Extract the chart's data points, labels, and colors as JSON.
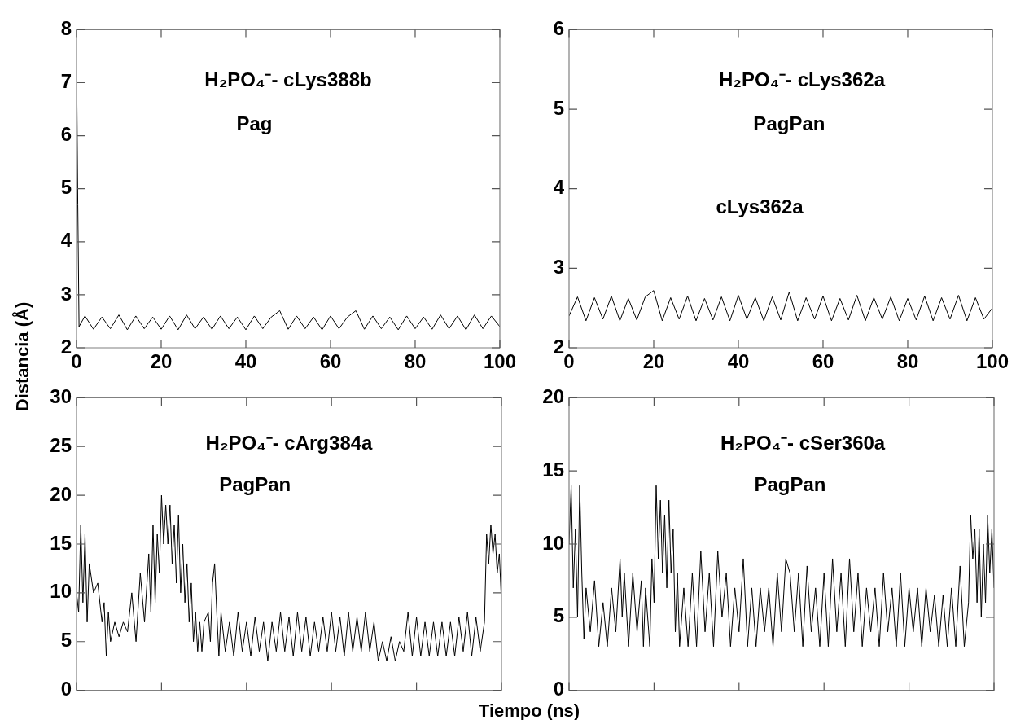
{
  "chart_data": [
    {
      "type": "line",
      "ylabel": "Distancia (Å)",
      "annotations": [
        "H₂PO₄⁻- cLys388b",
        "Pag"
      ],
      "xlim": [
        0,
        100
      ],
      "xticks": [
        0,
        20,
        40,
        60,
        80,
        100
      ],
      "ylim": [
        2,
        8
      ],
      "yticks": [
        2,
        3,
        4,
        5,
        6,
        7,
        8
      ],
      "grid": false,
      "marker": "none",
      "line_style": "solid",
      "series": [
        {
          "color": "#000000",
          "x": [
            0,
            0.3,
            0.6,
            2,
            4,
            6,
            8,
            10,
            12,
            14,
            16,
            18,
            20,
            22,
            24,
            26,
            28,
            30,
            32,
            34,
            36,
            38,
            40,
            42,
            44,
            46,
            48,
            50,
            52,
            54,
            56,
            58,
            60,
            62,
            64,
            66,
            68,
            70,
            72,
            74,
            76,
            78,
            80,
            82,
            84,
            86,
            88,
            90,
            92,
            94,
            96,
            98,
            100
          ],
          "values": [
            7.5,
            4.7,
            2.4,
            2.6,
            2.35,
            2.58,
            2.36,
            2.62,
            2.34,
            2.6,
            2.36,
            2.58,
            2.35,
            2.6,
            2.34,
            2.62,
            2.36,
            2.58,
            2.35,
            2.6,
            2.36,
            2.58,
            2.34,
            2.6,
            2.36,
            2.58,
            2.7,
            2.35,
            2.6,
            2.36,
            2.58,
            2.34,
            2.6,
            2.36,
            2.58,
            2.7,
            2.35,
            2.6,
            2.36,
            2.58,
            2.34,
            2.6,
            2.36,
            2.58,
            2.35,
            2.62,
            2.36,
            2.6,
            2.34,
            2.62,
            2.36,
            2.6,
            2.4
          ]
        }
      ]
    },
    {
      "type": "line",
      "annotations": [
        "H₂PO₄⁻- cLys362a",
        "PagPan",
        "cLys362a"
      ],
      "xlim": [
        0,
        100
      ],
      "xticks": [
        0,
        20,
        40,
        60,
        80,
        100
      ],
      "ylim": [
        2,
        6
      ],
      "yticks": [
        2,
        3,
        4,
        5,
        6
      ],
      "grid": false,
      "marker": "none",
      "line_style": "solid",
      "series": [
        {
          "color": "#000000",
          "x": [
            0,
            2,
            4,
            6,
            8,
            10,
            12,
            14,
            16,
            18,
            20,
            22,
            24,
            26,
            28,
            30,
            32,
            34,
            36,
            38,
            40,
            42,
            44,
            46,
            48,
            50,
            52,
            54,
            56,
            58,
            60,
            62,
            64,
            66,
            68,
            70,
            72,
            74,
            76,
            78,
            80,
            82,
            84,
            86,
            88,
            90,
            92,
            94,
            96,
            98,
            100
          ],
          "values": [
            2.4,
            2.64,
            2.34,
            2.63,
            2.36,
            2.65,
            2.34,
            2.62,
            2.35,
            2.64,
            2.72,
            2.34,
            2.63,
            2.36,
            2.65,
            2.34,
            2.62,
            2.35,
            2.64,
            2.34,
            2.66,
            2.36,
            2.63,
            2.34,
            2.64,
            2.35,
            2.7,
            2.34,
            2.63,
            2.36,
            2.65,
            2.34,
            2.62,
            2.35,
            2.66,
            2.34,
            2.63,
            2.36,
            2.64,
            2.34,
            2.62,
            2.35,
            2.65,
            2.34,
            2.63,
            2.36,
            2.66,
            2.34,
            2.63,
            2.36,
            2.5
          ]
        }
      ]
    },
    {
      "type": "line",
      "xlabel": "Tiempo (ns)",
      "annotations": [
        "H₂PO₄⁻- cArg384a",
        "PagPan"
      ],
      "xlim": [
        0,
        100
      ],
      "xticks": [
        0,
        20,
        40,
        60,
        80,
        100
      ],
      "ylim": [
        0,
        30
      ],
      "yticks": [
        0,
        5,
        10,
        15,
        20,
        25,
        30
      ],
      "tick_labels": "y",
      "grid": false,
      "marker": "none",
      "line_style": "solid",
      "series": [
        {
          "color": "#000000",
          "x": [
            0,
            0.5,
            1,
            1.5,
            2,
            2.5,
            3,
            4,
            5,
            6,
            6.5,
            7,
            7.5,
            8,
            9,
            10,
            11,
            12,
            13,
            14,
            15,
            16,
            17,
            17.5,
            18,
            18.5,
            19,
            19.5,
            20,
            20.5,
            21,
            21.5,
            22,
            22.5,
            23,
            23.5,
            24,
            24.5,
            25,
            25.5,
            26,
            26.5,
            27,
            27.5,
            28,
            28.5,
            29,
            29.5,
            30,
            31,
            31.5,
            32,
            32.5,
            33,
            33.5,
            34,
            35,
            36,
            37,
            38,
            39,
            40,
            41,
            42,
            43,
            44,
            45,
            46,
            47,
            48,
            49,
            50,
            51,
            52,
            53,
            54,
            55,
            56,
            57,
            58,
            59,
            60,
            61,
            62,
            63,
            64,
            65,
            66,
            67,
            68,
            69,
            70,
            71,
            72,
            73,
            74,
            75,
            76,
            77,
            78,
            79,
            80,
            81,
            82,
            83,
            84,
            85,
            86,
            87,
            88,
            89,
            90,
            91,
            92,
            93,
            94,
            95,
            96,
            96.5,
            97,
            97.5,
            98,
            98.5,
            99,
            99.5,
            100
          ],
          "values": [
            10,
            8,
            17,
            9,
            16,
            7,
            13,
            10,
            11,
            7,
            9,
            3.5,
            8,
            5,
            7,
            5.5,
            7,
            6,
            10,
            5,
            12,
            7,
            14,
            8,
            17,
            9,
            16,
            12,
            20,
            15,
            19,
            15,
            19,
            13,
            17,
            11,
            18,
            10,
            15,
            9,
            13,
            7,
            11,
            5,
            8,
            4,
            7,
            4,
            7,
            8,
            5,
            11,
            13,
            8,
            3.5,
            8,
            4,
            7,
            3.5,
            8,
            4,
            7,
            3.5,
            7.5,
            4,
            7,
            3,
            7,
            4,
            8,
            4,
            7.5,
            3.5,
            8,
            4,
            7.5,
            3.5,
            7,
            4,
            7.5,
            4,
            8,
            4,
            7.5,
            3.5,
            8,
            4,
            7.5,
            4,
            8,
            4,
            7,
            3,
            5,
            3,
            5.5,
            3,
            5,
            4,
            8,
            3.5,
            7.5,
            3.5,
            7,
            3.5,
            7,
            3.5,
            7,
            3.5,
            7,
            3.5,
            7.5,
            4,
            8,
            3.5,
            7.5,
            4,
            7,
            16,
            13,
            17,
            14,
            16,
            12,
            14,
            9
          ]
        }
      ]
    },
    {
      "type": "line",
      "annotations": [
        "H₂PO₄⁻- cSer360a",
        "PagPan"
      ],
      "xlim": [
        0,
        100
      ],
      "xticks": [
        0,
        20,
        40,
        60,
        80,
        100
      ],
      "ylim": [
        0,
        20
      ],
      "yticks": [
        0,
        5,
        10,
        15,
        20
      ],
      "tick_labels": "y",
      "grid": false,
      "marker": "none",
      "line_style": "solid",
      "series": [
        {
          "color": "#000000",
          "x": [
            0,
            0.5,
            1,
            1.5,
            2,
            2.5,
            3,
            3.5,
            4,
            5,
            6,
            7,
            8,
            9,
            10,
            11,
            12,
            12.5,
            13,
            14,
            15,
            16,
            17,
            17.5,
            18,
            19,
            19.5,
            20,
            20.5,
            21,
            21.5,
            22,
            22.5,
            23,
            23.5,
            24,
            24.5,
            25,
            25.5,
            26,
            27,
            28,
            29,
            30,
            31,
            32,
            33,
            34,
            35,
            36,
            37,
            38,
            39,
            40,
            41,
            42,
            43,
            44,
            45,
            46,
            47,
            48,
            49,
            50,
            51,
            52,
            53,
            54,
            55,
            56,
            57,
            58,
            59,
            60,
            61,
            62,
            63,
            64,
            65,
            66,
            67,
            68,
            69,
            70,
            71,
            72,
            73,
            74,
            75,
            76,
            77,
            78,
            79,
            80,
            81,
            82,
            83,
            84,
            85,
            86,
            87,
            88,
            89,
            90,
            91,
            92,
            93,
            94,
            94.5,
            95,
            95.5,
            96,
            96.5,
            97,
            97.5,
            98,
            98.5,
            99,
            99.5,
            100
          ],
          "values": [
            10,
            14,
            7,
            11,
            5,
            14,
            8,
            3.5,
            7,
            4,
            7.5,
            3,
            6,
            3,
            7,
            4,
            9,
            5,
            8,
            3,
            8,
            4,
            7.5,
            3,
            7,
            3,
            9,
            6,
            14,
            9,
            13,
            8,
            12,
            7,
            13,
            8,
            11,
            4,
            8,
            3,
            7,
            3,
            8,
            3,
            9.5,
            4,
            8,
            3,
            9.5,
            5,
            8,
            3,
            7,
            4,
            9,
            3,
            7,
            3,
            7,
            4,
            7,
            3,
            8,
            4,
            9,
            8,
            4,
            8,
            3,
            8.5,
            4,
            7,
            3,
            8,
            3,
            9,
            4,
            8,
            3,
            9,
            4,
            8,
            3,
            7,
            4,
            7,
            3,
            8,
            4,
            7,
            3,
            8,
            3,
            7,
            4,
            7,
            3,
            7,
            4,
            6.5,
            3,
            6.5,
            3,
            7,
            3,
            8.5,
            3,
            6,
            12,
            9,
            11,
            6,
            11,
            5,
            10,
            6,
            12,
            8,
            11,
            7
          ]
        }
      ]
    }
  ]
}
